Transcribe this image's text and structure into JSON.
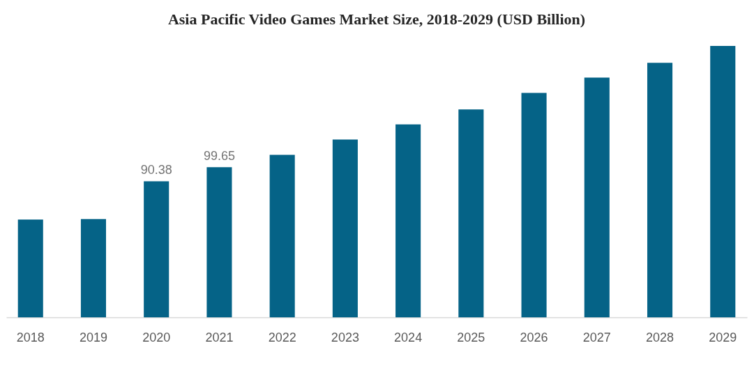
{
  "chart_data": {
    "type": "bar",
    "title": "Asia Pacific Video Games Market Size, 2018-2029 (USD Billion)",
    "categories": [
      "2018",
      "2019",
      "2020",
      "2021",
      "2022",
      "2023",
      "2024",
      "2025",
      "2026",
      "2027",
      "2028",
      "2029"
    ],
    "values": [
      64.9,
      65.3,
      90.38,
      99.65,
      107.9,
      118.0,
      128.1,
      138.0,
      149.0,
      159.2,
      169.0,
      180.2
    ],
    "value_labels": [
      null,
      null,
      "90.38",
      "99.65",
      null,
      null,
      null,
      null,
      null,
      null,
      null,
      null
    ],
    "color": "#056387",
    "grid": false
  }
}
